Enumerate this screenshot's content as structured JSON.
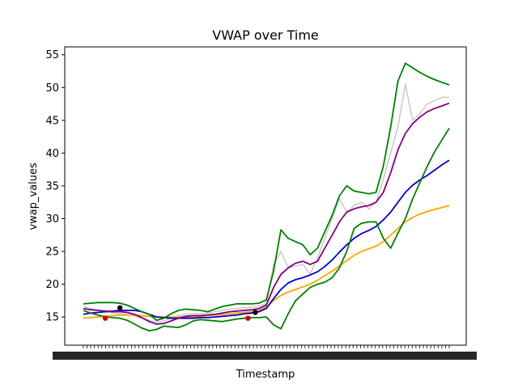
{
  "chart_data": {
    "type": "line",
    "title": "VWAP over Time",
    "xlabel": "Timestamp",
    "ylabel": "vwap_values",
    "ylim": [
      10.7,
      56.2
    ],
    "yticks": [
      15,
      20,
      25,
      30,
      35,
      40,
      45,
      50,
      55
    ],
    "x_range": [
      0,
      100
    ],
    "x_tick_count": 100,
    "grid": false,
    "legend": "none",
    "x": [
      0,
      2,
      4,
      6,
      8,
      10,
      12,
      14,
      16,
      18,
      20,
      22,
      24,
      26,
      28,
      30,
      32,
      34,
      36,
      38,
      40,
      42,
      44,
      46,
      48,
      50,
      52,
      54,
      56,
      58,
      60,
      62,
      64,
      66,
      68,
      70,
      72,
      74,
      76,
      78,
      80,
      82,
      84,
      86,
      88,
      90,
      92,
      94,
      96,
      98,
      100
    ],
    "series": [
      {
        "color": "#c8c8c8",
        "values": [
          16.6,
          16.3,
          16.0,
          15.8,
          15.6,
          15.5,
          15.4,
          15.1,
          14.8,
          14.5,
          14.2,
          14.4,
          14.8,
          15.2,
          15.4,
          15.5,
          15.5,
          15.6,
          15.8,
          16.0,
          16.2,
          16.3,
          16.4,
          16.5,
          16.7,
          17.0,
          23.0,
          25.0,
          22.5,
          22.8,
          23.0,
          21.5,
          24.0,
          27.0,
          30.0,
          33.0,
          31.0,
          32.0,
          32.5,
          31.5,
          32.5,
          36.0,
          40.0,
          44.0,
          50.5,
          45.0,
          46.0,
          47.5,
          48.0,
          48.5,
          48.5
        ]
      },
      {
        "color": "#ffa500",
        "values": [
          14.8,
          14.9,
          15.0,
          15.1,
          15.2,
          15.3,
          15.3,
          15.3,
          15.2,
          15.1,
          15.0,
          15.0,
          15.0,
          15.0,
          15.0,
          15.0,
          15.1,
          15.2,
          15.3,
          15.4,
          15.5,
          15.6,
          15.7,
          15.8,
          16.0,
          16.5,
          17.5,
          18.3,
          18.8,
          19.2,
          19.6,
          20.0,
          20.6,
          21.3,
          22.0,
          22.8,
          23.6,
          24.4,
          25.0,
          25.4,
          25.8,
          26.5,
          27.5,
          28.5,
          29.5,
          30.2,
          30.7,
          31.1,
          31.4,
          31.7,
          32.0
        ]
      },
      {
        "color": "#0000cc",
        "values": [
          15.4,
          15.6,
          15.7,
          15.8,
          15.9,
          16.0,
          16.0,
          16.0,
          15.8,
          15.4,
          15.0,
          14.9,
          14.8,
          14.8,
          14.8,
          14.8,
          14.9,
          14.9,
          15.0,
          15.1,
          15.2,
          15.3,
          15.5,
          15.6,
          15.8,
          16.3,
          17.8,
          19.2,
          20.2,
          20.7,
          21.0,
          21.4,
          21.9,
          22.7,
          23.7,
          24.9,
          26.0,
          27.0,
          27.7,
          28.2,
          28.8,
          29.8,
          31.0,
          32.5,
          34.0,
          35.1,
          35.9,
          36.6,
          37.4,
          38.2,
          38.9
        ]
      },
      {
        "color": "#800080",
        "values": [
          16.3,
          16.1,
          16.0,
          15.9,
          15.8,
          15.8,
          15.7,
          15.4,
          14.9,
          14.3,
          13.9,
          14.0,
          14.4,
          14.8,
          15.1,
          15.2,
          15.2,
          15.3,
          15.4,
          15.6,
          15.8,
          15.9,
          16.0,
          16.1,
          16.3,
          16.8,
          19.5,
          21.5,
          22.5,
          23.2,
          23.5,
          23.0,
          23.5,
          25.5,
          27.5,
          29.5,
          31.0,
          31.5,
          31.8,
          32.0,
          32.5,
          34.0,
          37.0,
          40.5,
          43.0,
          44.5,
          45.5,
          46.3,
          46.8,
          47.2,
          47.6
        ]
      },
      {
        "color": "#008000",
        "values": [
          17.0,
          17.1,
          17.2,
          17.2,
          17.2,
          17.1,
          16.8,
          16.3,
          15.8,
          15.4,
          14.5,
          14.8,
          15.5,
          16.0,
          16.2,
          16.1,
          16.0,
          15.8,
          16.2,
          16.6,
          16.8,
          17.0,
          17.0,
          17.0,
          17.1,
          17.6,
          22.0,
          28.3,
          27.0,
          26.5,
          26.0,
          24.5,
          25.5,
          28.0,
          30.5,
          33.5,
          35.0,
          34.2,
          34.0,
          33.8,
          34.0,
          38.0,
          44.0,
          51.0,
          53.7,
          53.0,
          52.3,
          51.7,
          51.2,
          50.8,
          50.4
        ]
      },
      {
        "color": "#008000",
        "values": [
          16.0,
          15.6,
          15.3,
          15.0,
          14.9,
          14.8,
          14.5,
          13.9,
          13.3,
          12.9,
          13.1,
          13.6,
          13.5,
          13.4,
          13.8,
          14.4,
          14.6,
          14.5,
          14.4,
          14.3,
          14.5,
          14.7,
          14.8,
          14.9,
          14.9,
          15.0,
          13.8,
          13.2,
          15.5,
          17.5,
          18.5,
          19.5,
          20.0,
          20.3,
          21.0,
          22.5,
          25.0,
          28.5,
          29.3,
          29.5,
          29.5,
          27.0,
          25.5,
          27.8,
          30.0,
          33.0,
          35.5,
          38.0,
          40.2,
          42.0,
          43.8
        ]
      }
    ],
    "markers": [
      {
        "x": 6,
        "y": 14.8,
        "color": "#d00000"
      },
      {
        "x": 10,
        "y": 16.4,
        "color": "#000000"
      },
      {
        "x": 45,
        "y": 14.8,
        "color": "#d00000"
      },
      {
        "x": 47,
        "y": 15.7,
        "color": "#000000"
      }
    ]
  }
}
